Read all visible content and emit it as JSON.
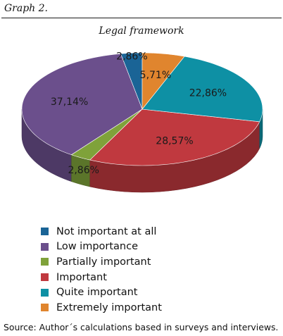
{
  "header": {
    "graph_label": "Graph 2."
  },
  "chart_data": {
    "type": "pie",
    "title": "Legal framework",
    "slices": [
      {
        "name": "Not important at all",
        "value": 2.86,
        "label": "2,86%",
        "color": "#1a6496"
      },
      {
        "name": "Low importance",
        "value": 37.14,
        "label": "37,14%",
        "color": "#6b4f8c"
      },
      {
        "name": "Partially important",
        "value": 2.86,
        "label": "2,86%",
        "color": "#7fa23a"
      },
      {
        "name": "Important",
        "value": 28.57,
        "label": "28,57%",
        "color": "#c0393f"
      },
      {
        "name": "Quite important",
        "value": 22.86,
        "label": "22,86%",
        "color": "#0e90a4"
      },
      {
        "name": "Extremely important",
        "value": 5.71,
        "label": "5,71%",
        "color": "#e0852e"
      }
    ],
    "legend": {
      "placement": "bottom"
    }
  },
  "source": "Source: Author´s calculations based in surveys and interviews."
}
